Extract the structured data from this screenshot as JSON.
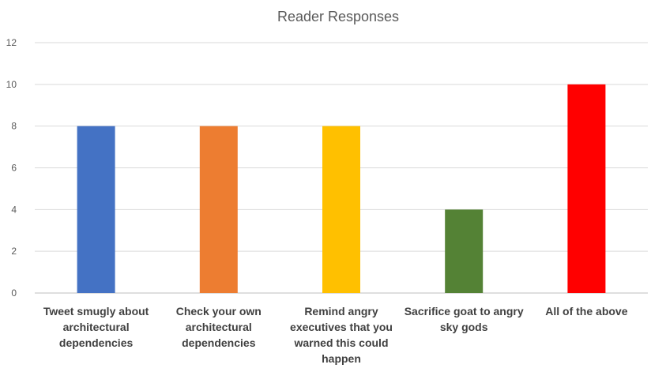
{
  "chart_data": {
    "type": "bar",
    "title": "Reader Responses",
    "xlabel": "",
    "ylabel": "",
    "ylim": [
      0,
      12
    ],
    "yticks": [
      0,
      2,
      4,
      6,
      8,
      10,
      12
    ],
    "grid": true,
    "legend": "none",
    "categories": [
      "Tweet smugly about architectural dependencies",
      "Check your own architectural dependencies",
      "Remind angry executives that you warned this could happen",
      "Sacrifice goat to angry sky gods",
      "All of the above"
    ],
    "values": [
      8,
      8,
      8,
      4,
      10
    ],
    "colors": [
      "#4472C4",
      "#ED7D31",
      "#FFC000",
      "#548235",
      "#FF0000"
    ]
  }
}
